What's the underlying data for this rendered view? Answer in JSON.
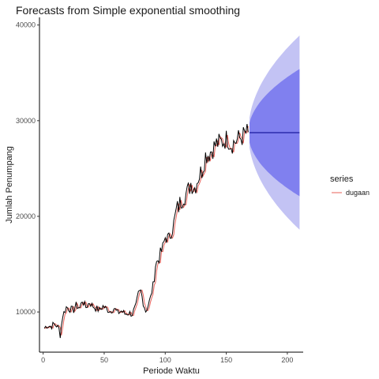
{
  "chart_data": {
    "type": "line",
    "title": "Forecasts from Simple exponential smoothing",
    "xlabel": "Periode Waktu",
    "ylabel": "Jumlah Penumpang",
    "xlim": [
      -3,
      213
    ],
    "ylim": [
      5800,
      40800
    ],
    "x_ticks": [
      0,
      50,
      100,
      150,
      200
    ],
    "y_ticks": [
      10000,
      20000,
      30000,
      40000
    ],
    "grid": false,
    "legend": {
      "title": "series",
      "position": "right",
      "entries": [
        "dugaan"
      ]
    },
    "colors": {
      "actual": "#000000",
      "fitted": "#e8615a",
      "forecast": "#00008b",
      "band80": "#8080ef",
      "band95": "#c3c3f4"
    },
    "actual_anchors": [
      [
        1,
        8300
      ],
      [
        3,
        8600
      ],
      [
        6,
        8500
      ],
      [
        9,
        8700
      ],
      [
        11,
        8600
      ],
      [
        13,
        8200
      ],
      [
        14,
        7600
      ],
      [
        16,
        9600
      ],
      [
        19,
        10500
      ],
      [
        22,
        10300
      ],
      [
        25,
        10200
      ],
      [
        27,
        10700
      ],
      [
        30,
        10400
      ],
      [
        32,
        11200
      ],
      [
        35,
        10500
      ],
      [
        38,
        11000
      ],
      [
        40,
        10700
      ],
      [
        43,
        10400
      ],
      [
        46,
        10200
      ],
      [
        49,
        10600
      ],
      [
        52,
        10300
      ],
      [
        55,
        10100
      ],
      [
        58,
        10400
      ],
      [
        61,
        9900
      ],
      [
        64,
        10100
      ],
      [
        67,
        9800
      ],
      [
        70,
        9900
      ],
      [
        73,
        9800
      ],
      [
        76,
        10600
      ],
      [
        78,
        11900
      ],
      [
        80,
        12200
      ],
      [
        82,
        11000
      ],
      [
        84,
        10100
      ],
      [
        86,
        10700
      ],
      [
        88,
        11500
      ],
      [
        90,
        12800
      ],
      [
        92,
        14900
      ],
      [
        95,
        15700
      ],
      [
        98,
        16700
      ],
      [
        100,
        17800
      ],
      [
        103,
        17700
      ],
      [
        106,
        18700
      ],
      [
        109,
        20500
      ],
      [
        112,
        21300
      ],
      [
        115,
        22200
      ],
      [
        118,
        22400
      ],
      [
        121,
        23500
      ],
      [
        124,
        23000
      ],
      [
        127,
        24100
      ],
      [
        130,
        24800
      ],
      [
        133,
        26400
      ],
      [
        136,
        26600
      ],
      [
        139,
        27100
      ],
      [
        142,
        27600
      ],
      [
        145,
        27700
      ],
      [
        148,
        27900
      ],
      [
        151,
        28200
      ],
      [
        154,
        27500
      ],
      [
        157,
        27800
      ],
      [
        160,
        28100
      ],
      [
        163,
        28300
      ],
      [
        166,
        28700
      ],
      [
        168,
        28800
      ]
    ],
    "forecast": {
      "x_start": 169,
      "x_end": 210,
      "value": 28750
    },
    "interval_80": {
      "lower_at_end": 22100,
      "upper_at_end": 35400
    },
    "interval_95": {
      "lower_at_end": 18600,
      "upper_at_end": 38900
    }
  }
}
